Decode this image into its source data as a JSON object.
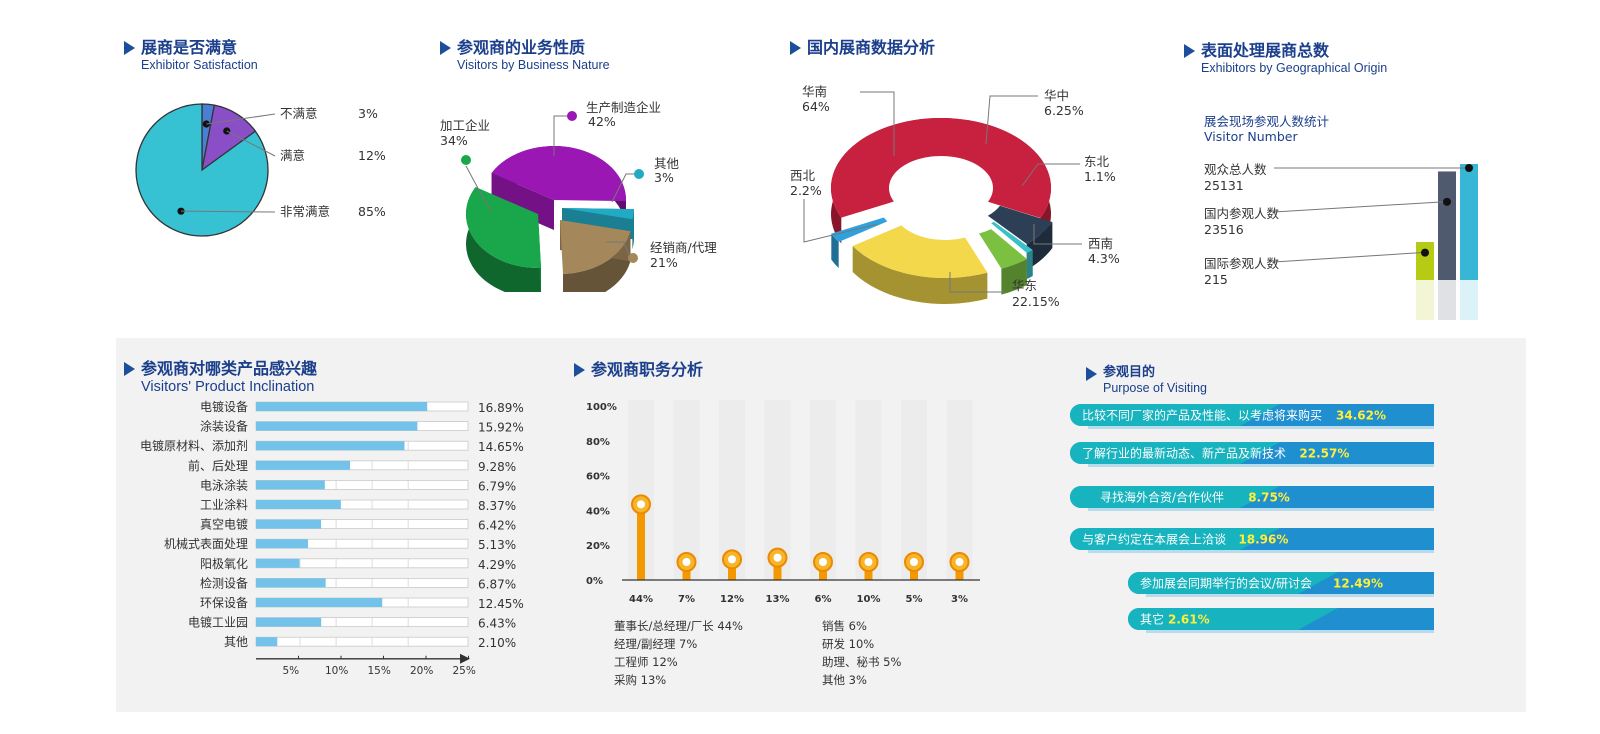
{
  "colors": {
    "title": "#1b3f8b",
    "accent_cyan": "#37c2d4",
    "accent_purple": "#8a4fc7",
    "bar_blue": "#73c2ea",
    "orange": "#f39800"
  },
  "sections": {
    "satisfaction": {
      "title_cn": "展商是否满意",
      "title_en": "Exhibitor Satisfaction"
    },
    "business": {
      "title_cn": "参观商的业务性质",
      "title_en": "Visitors by Business Nature"
    },
    "domestic": {
      "title_cn": "国内展商数据分析"
    },
    "origin": {
      "title_cn": "表面处理展商总数",
      "title_en": "Exhibitors by Geographical Origin"
    },
    "inclination": {
      "title_cn": "参观商对哪类产品感兴趣",
      "title_en": "Visitors' Product Inclination"
    },
    "job": {
      "title_cn": "参观商职务分析"
    },
    "purpose": {
      "title_cn": "参观目的",
      "title_en": "Purpose of Visiting"
    }
  },
  "chart_data": [
    {
      "id": "satisfaction",
      "type": "pie",
      "slices": [
        {
          "label": "不满意",
          "value": 3,
          "value_text": "3%",
          "color": "#4a7fd6"
        },
        {
          "label": "满意",
          "value": 12,
          "value_text": "12%",
          "color": "#8a4fc7"
        },
        {
          "label": "非常满意",
          "value": 85,
          "value_text": "85%",
          "color": "#37c2d4"
        }
      ]
    },
    {
      "id": "business",
      "type": "pie",
      "slices": [
        {
          "label": "生产制造企业",
          "value": 42,
          "value_text": "42%",
          "color": "#9a17b4"
        },
        {
          "label": "其他",
          "value": 3,
          "value_text": "3%",
          "color": "#22a9c4"
        },
        {
          "label": "经销商/代理",
          "value": 21,
          "value_text": "21%",
          "color": "#a4875a"
        },
        {
          "label": "加工企业",
          "value": 34,
          "value_text": "34%",
          "color": "#1aa64a"
        }
      ]
    },
    {
      "id": "domestic",
      "type": "pie",
      "slices": [
        {
          "label": "华南",
          "value": 64,
          "value_text": "64%",
          "color": "#c8203f"
        },
        {
          "label": "华中",
          "value": 6.25,
          "value_text": "6.25%",
          "color": "#2c3f55"
        },
        {
          "label": "东北",
          "value": 1.1,
          "value_text": "1.1%",
          "color": "#3cc0c8"
        },
        {
          "label": "西南",
          "value": 4.3,
          "value_text": "4.3%",
          "color": "#7cc042"
        },
        {
          "label": "华东",
          "value": 22.15,
          "value_text": "22.15%",
          "color": "#f2d84a"
        },
        {
          "label": "西北",
          "value": 2.2,
          "value_text": "2.2%",
          "color": "#2fa2dd"
        }
      ]
    },
    {
      "id": "origin",
      "type": "bar",
      "subtitle_cn": "展会现场参观人数统计",
      "subtitle_en": "Visitor Number",
      "items": [
        {
          "label": "观众总人数",
          "value": 25131,
          "color": "#37b6d6"
        },
        {
          "label": "国内参观人数",
          "value": 23516,
          "color": "#4f5a6e"
        },
        {
          "label": "国际参观人数",
          "value": 215,
          "color": "#b6cc14"
        }
      ]
    },
    {
      "id": "inclination",
      "type": "bar",
      "categories": [
        "电镀设备",
        "涂装设备",
        "电镀原材料、添加剂",
        "前、后处理",
        "电泳涂装",
        "工业涂料",
        "真空电镀",
        "机械式表面处理",
        "阳极氧化",
        "检测设备",
        "环保设备",
        "电镀工业园",
        "其他"
      ],
      "values": [
        16.89,
        15.92,
        14.65,
        9.28,
        6.79,
        8.37,
        6.42,
        5.13,
        4.29,
        6.87,
        12.45,
        6.43,
        2.1
      ],
      "value_labels": [
        "16.89%",
        "15.92%",
        "14.65%",
        "9.28%",
        "6.79%",
        "8.37%",
        "6.42%",
        "5.13%",
        "4.29%",
        "6.87%",
        "12.45%",
        "6.43%",
        "2.10%"
      ],
      "xticks": [
        "5%",
        "10%",
        "15%",
        "20%",
        "25%"
      ],
      "xlim": [
        0,
        25
      ]
    },
    {
      "id": "job",
      "type": "bar",
      "yticks": [
        "100%",
        "80%",
        "60%",
        "40%",
        "20%",
        "0%"
      ],
      "ylim": [
        0,
        100
      ],
      "values": [
        44,
        7,
        12,
        13,
        6,
        10,
        5,
        3
      ],
      "value_labels": [
        "44%",
        "7%",
        "12%",
        "13%",
        "6%",
        "10%",
        "5%",
        "3%"
      ],
      "legend": [
        "董事长/总经理/厂长 44%",
        "经理/副经理 7%",
        "工程师 12%",
        "采购 13%",
        "销售 6%",
        "研发 10%",
        "助理、秘书 5%",
        "其他 3%"
      ]
    },
    {
      "id": "purpose",
      "type": "bar",
      "items": [
        {
          "label": "比较不同厂家的产品及性能、以考虑将来购买",
          "value": 34.62,
          "value_text": "34.62%"
        },
        {
          "label": "了解行业的最新动态、新产品及新技术",
          "value": 22.57,
          "value_text": "22.57%"
        },
        {
          "label": "寻找海外合资/合作伙伴",
          "value": 8.75,
          "value_text": "8.75%"
        },
        {
          "label": "与客户约定在本展会上洽谈",
          "value": 18.96,
          "value_text": "18.96%"
        },
        {
          "label": "参加展会同期举行的会议/研讨会",
          "value": 12.49,
          "value_text": "12.49%"
        },
        {
          "label": "其它",
          "value": 2.61,
          "value_text": "2.61%"
        }
      ]
    }
  ]
}
